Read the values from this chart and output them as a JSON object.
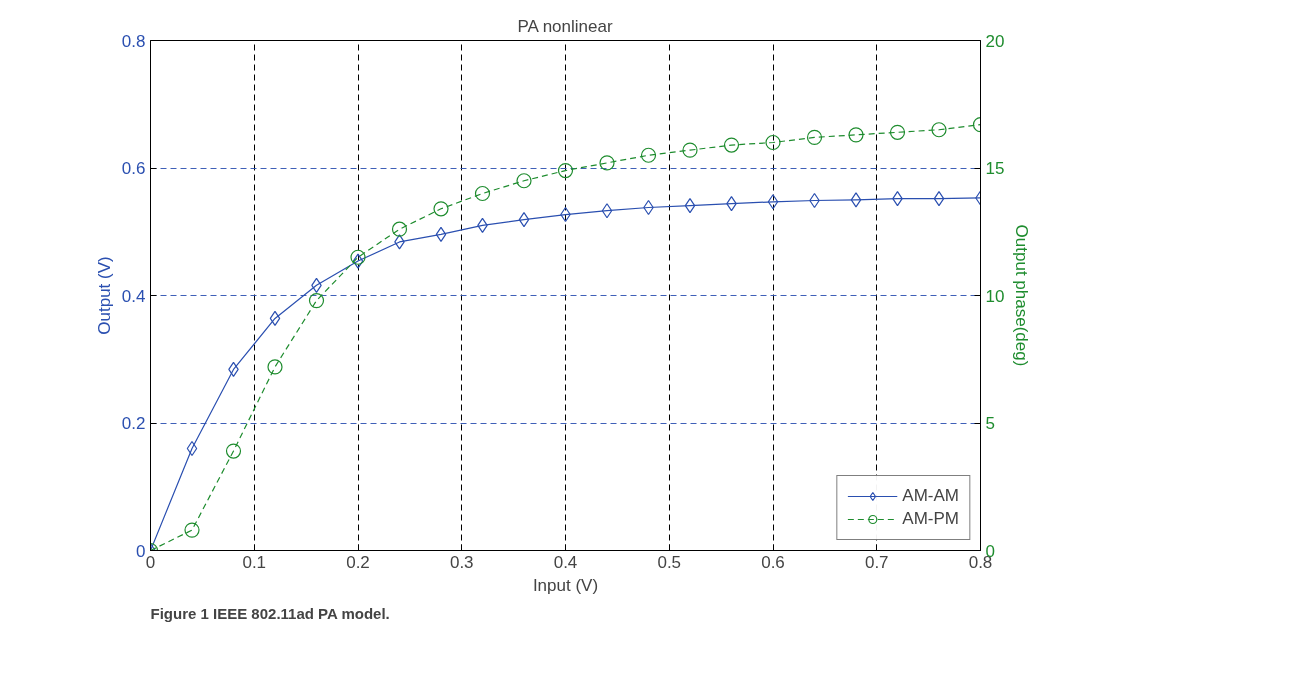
{
  "chart_data": {
    "type": "line",
    "title": "PA nonlinear",
    "xlabel": "Input (V)",
    "ylabel": "Output (V)",
    "y2label": "Output phase(deg)",
    "x": [
      0,
      0.04,
      0.08,
      0.12,
      0.16,
      0.2,
      0.24,
      0.28,
      0.32,
      0.36,
      0.4,
      0.44,
      0.48,
      0.52,
      0.56,
      0.6,
      0.64,
      0.68,
      0.72,
      0.76,
      0.8
    ],
    "series": [
      {
        "name": "AM-AM",
        "color": "#2a4fb0",
        "marker": "diamond",
        "line_style": "solid",
        "values": [
          0,
          0.16,
          0.284,
          0.364,
          0.416,
          0.454,
          0.484,
          0.496,
          0.51,
          0.519,
          0.527,
          0.533,
          0.538,
          0.541,
          0.544,
          0.547,
          0.549,
          0.55,
          0.552,
          0.552,
          0.553
        ]
      },
      {
        "name": "AM-PM",
        "color": "#1e8c2e",
        "marker": "circle",
        "line_style": "dashed",
        "axis": "y2",
        "values": [
          0,
          0.8,
          3.9,
          7.2,
          9.8,
          11.5,
          12.6,
          13.4,
          14.0,
          14.5,
          14.9,
          15.2,
          15.5,
          15.7,
          15.9,
          16.0,
          16.2,
          16.3,
          16.4,
          16.5,
          16.7
        ]
      }
    ],
    "xlim": [
      0,
      0.8
    ],
    "xticks": [
      0,
      0.1,
      0.2,
      0.3,
      0.4,
      0.5,
      0.6,
      0.7,
      0.8
    ],
    "ylim": [
      0,
      0.8
    ],
    "yticks": [
      0,
      0.2,
      0.4,
      0.6,
      0.8
    ],
    "y2lim": [
      0,
      20
    ],
    "y2ticks": [
      0,
      5,
      10,
      15,
      20
    ],
    "grid": true,
    "legend": "bottom right",
    "annotations": [
      "Figure 1 IEEE 802.11ad PA model."
    ]
  }
}
